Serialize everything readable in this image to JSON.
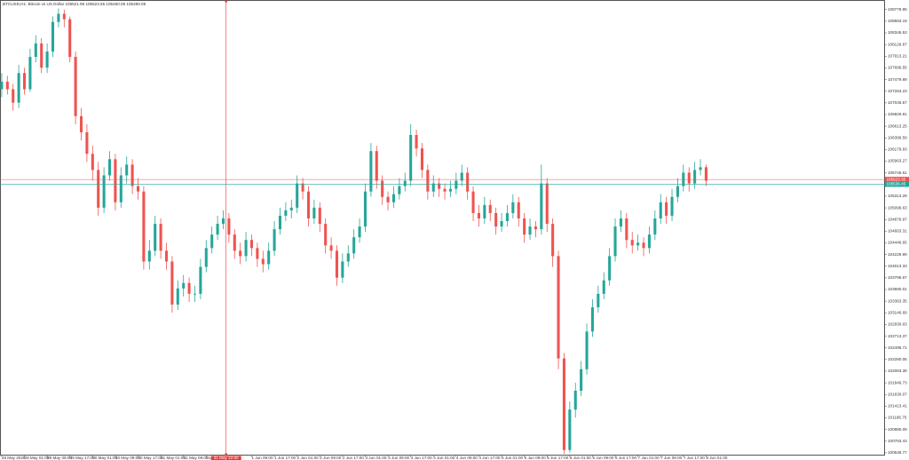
{
  "chart_data": {
    "type": "candlestick",
    "title": "BTCUSD,H1:  Bitcoin vs US Dollar  105521.95 105523.55 105460.05 105480.05",
    "up_color": "#26a69a",
    "down_color": "#ef5350",
    "x": [
      0,
      2,
      4,
      6,
      8,
      10,
      12,
      14,
      16,
      18,
      20,
      22,
      24,
      26,
      28,
      30,
      32,
      34,
      36,
      38,
      40,
      42,
      44,
      46,
      48,
      50,
      52,
      54,
      56,
      58,
      60,
      62,
      64,
      66,
      68,
      70,
      72,
      74,
      76,
      78,
      80,
      82,
      84,
      86,
      88,
      90,
      92,
      94,
      96,
      98,
      100,
      102,
      104,
      106,
      108,
      110,
      112,
      114,
      116,
      118,
      120,
      122,
      124,
      126,
      128,
      130,
      132,
      134,
      136,
      138,
      140,
      142,
      144,
      146,
      148,
      150,
      152,
      154,
      156,
      158,
      160,
      162,
      164,
      166,
      168,
      170,
      172,
      174,
      176,
      178,
      180,
      182,
      184,
      186,
      188,
      190,
      192,
      194,
      196,
      198,
      200,
      202,
      204,
      206,
      208,
      210,
      212,
      214,
      216,
      218,
      220,
      222,
      224,
      226,
      228,
      230,
      232,
      234,
      236,
      238,
      240,
      242,
      244,
      246,
      248
    ],
    "open": [
      107300,
      107440,
      107300,
      107050,
      107600,
      107300,
      107900,
      108150,
      107700,
      108000,
      108550,
      108700,
      108600,
      107900,
      106800,
      106500,
      106100,
      105800,
      105100,
      105700,
      106000,
      105200,
      105700,
      105900,
      105500,
      105400,
      104100,
      104300,
      104800,
      104300,
      104100,
      103300,
      103600,
      103700,
      103500,
      103500,
      104000,
      104350,
      104600,
      104800,
      104900,
      104600,
      104300,
      104200,
      104500,
      104350,
      104150,
      104050,
      104300,
      104700,
      104950,
      105050,
      105100,
      105550,
      105400,
      104900,
      105100,
      104800,
      104400,
      104300,
      103800,
      104100,
      104250,
      104550,
      104750,
      105400,
      106150,
      105600,
      105300,
      105200,
      105350,
      105500,
      105600,
      106450,
      106200,
      105800,
      105400,
      105550,
      105450,
      105400,
      105450,
      105600,
      105750,
      105400,
      105000,
      104900,
      105150,
      105000,
      104750,
      104850,
      105000,
      105200,
      104900,
      104600,
      104750,
      104700,
      105550,
      104800,
      104200,
      102300,
      100600,
      101350,
      101700,
      102100,
      102800,
      103250,
      103500,
      103750,
      104200,
      104750,
      104900,
      104500,
      104400,
      104450,
      104350,
      104600,
      104900,
      105200,
      104950,
      105300,
      105500,
      105750,
      105550,
      105800,
      105850
    ],
    "high": [
      107600,
      107550,
      107400,
      107750,
      107700,
      108050,
      108300,
      108250,
      108150,
      108650,
      108800,
      108780,
      108650,
      108000,
      106950,
      106650,
      106250,
      105950,
      105850,
      106150,
      106100,
      105850,
      106050,
      106000,
      105650,
      105500,
      104500,
      104950,
      104900,
      104450,
      104200,
      103750,
      103850,
      103800,
      103650,
      104150,
      104500,
      104750,
      104950,
      105050,
      105000,
      104700,
      104450,
      104650,
      104600,
      104450,
      104300,
      104450,
      104850,
      105100,
      105200,
      105250,
      105700,
      105650,
      105500,
      105250,
      105200,
      104900,
      104550,
      104400,
      104250,
      104400,
      104700,
      104900,
      105550,
      106300,
      106250,
      105700,
      105400,
      105500,
      105650,
      105750,
      106650,
      106550,
      106300,
      105900,
      105700,
      105650,
      105550,
      105600,
      105750,
      105900,
      105850,
      105500,
      105150,
      105300,
      105250,
      105100,
      105000,
      105150,
      105350,
      105300,
      105000,
      104900,
      104850,
      105900,
      105650,
      104900,
      104300,
      102400,
      101500,
      101850,
      102250,
      102950,
      103400,
      103650,
      103900,
      104350,
      104900,
      105050,
      105000,
      104650,
      104600,
      104550,
      104750,
      105050,
      105350,
      105300,
      105450,
      105650,
      105900,
      105850,
      105950,
      106000,
      105900
    ],
    "low": [
      107150,
      107200,
      106900,
      106950,
      107200,
      107250,
      107800,
      107600,
      107600,
      107900,
      108450,
      108450,
      107800,
      106650,
      106350,
      105950,
      105600,
      104950,
      105000,
      105600,
      105050,
      105100,
      105550,
      105350,
      105250,
      103950,
      103950,
      104200,
      104150,
      103950,
      103150,
      103200,
      103450,
      103350,
      103350,
      103400,
      103900,
      104250,
      104500,
      104700,
      104450,
      104150,
      104050,
      104100,
      104200,
      104000,
      103900,
      103950,
      104200,
      104600,
      104850,
      104900,
      105000,
      105250,
      104750,
      104800,
      104650,
      104250,
      104150,
      103650,
      103700,
      104000,
      104150,
      104450,
      104650,
      105300,
      105450,
      105150,
      105050,
      105100,
      105250,
      105400,
      105500,
      106050,
      105650,
      105250,
      105300,
      105300,
      105250,
      105300,
      105350,
      105500,
      105250,
      104850,
      104750,
      104800,
      104850,
      104600,
      104650,
      104750,
      104900,
      104750,
      104450,
      104500,
      104550,
      104600,
      104650,
      104000,
      102100,
      100527,
      100550,
      101200,
      101600,
      102000,
      102700,
      103150,
      103400,
      103650,
      104100,
      104650,
      104350,
      104250,
      104300,
      104200,
      104250,
      104500,
      104800,
      104800,
      104850,
      105200,
      105400,
      105400,
      105450,
      105700,
      105500
    ],
    "close": [
      107440,
      107300,
      107050,
      107600,
      107300,
      107900,
      108150,
      107700,
      108000,
      108550,
      108700,
      108600,
      107900,
      106800,
      106500,
      106100,
      105800,
      105100,
      105700,
      106000,
      105200,
      105700,
      105900,
      105500,
      105400,
      104100,
      104300,
      104800,
      104300,
      104100,
      103300,
      103600,
      103700,
      103500,
      103500,
      104000,
      104350,
      104600,
      104800,
      104900,
      104600,
      104300,
      104200,
      104500,
      104350,
      104150,
      104050,
      104300,
      104700,
      104950,
      105050,
      105100,
      105550,
      105400,
      104900,
      105100,
      104800,
      104400,
      104300,
      103800,
      104100,
      104250,
      104550,
      104750,
      105400,
      106150,
      105600,
      105300,
      105200,
      105350,
      105500,
      105600,
      106450,
      106200,
      105800,
      105400,
      105550,
      105450,
      105400,
      105450,
      105600,
      105750,
      105400,
      105000,
      104900,
      105150,
      105000,
      104750,
      104850,
      105000,
      105200,
      104900,
      104600,
      104750,
      104700,
      105550,
      104800,
      104200,
      102300,
      100600,
      101350,
      101700,
      102100,
      102800,
      103250,
      103500,
      103750,
      104200,
      104750,
      104900,
      104500,
      104400,
      104450,
      104350,
      104600,
      104900,
      105200,
      104950,
      105300,
      105500,
      105750,
      105550,
      105800,
      105850,
      105600
    ],
    "xlim": [
      -0.6,
      311
    ],
    "ylim": [
      100496,
      108957
    ],
    "xticks": [
      {
        "value": 0,
        "label": "28 May 2025"
      },
      {
        "value": 8,
        "label": "29 May 01:00"
      },
      {
        "value": 16,
        "label": "29 May 09:00"
      },
      {
        "value": 24,
        "label": "29 May 17:00"
      },
      {
        "value": 32,
        "label": "30 May 01:00"
      },
      {
        "value": 40,
        "label": "30 May 09:00"
      },
      {
        "value": 48,
        "label": "30 May 17:00"
      },
      {
        "value": 56,
        "label": "31 May 01:00"
      },
      {
        "value": 64,
        "label": "31 May 09:00"
      },
      {
        "value": 72,
        "label": "31 May 17:00"
      },
      {
        "value": 88,
        "label": "1 Jun 09:00"
      },
      {
        "value": 96,
        "label": "1 Jun 17:00"
      },
      {
        "value": 104,
        "label": "2 Jun 01:00"
      },
      {
        "value": 112,
        "label": "2 Jun 09:00"
      },
      {
        "value": 120,
        "label": "2 Jun 17:00"
      },
      {
        "value": 128,
        "label": "3 Jun 01:00"
      },
      {
        "value": 136,
        "label": "3 Jun 09:00"
      },
      {
        "value": 144,
        "label": "3 Jun 17:00"
      },
      {
        "value": 152,
        "label": "4 Jun 01:00"
      },
      {
        "value": 160,
        "label": "4 Jun 09:00"
      },
      {
        "value": 168,
        "label": "4 Jun 17:00"
      },
      {
        "value": 176,
        "label": "5 Jun 01:00"
      },
      {
        "value": 184,
        "label": "5 Jun 09:00"
      },
      {
        "value": 192,
        "label": "5 Jun 17:00"
      },
      {
        "value": 200,
        "label": "6 Jun 01:00"
      },
      {
        "value": 208,
        "label": "6 Jun 09:00"
      },
      {
        "value": 216,
        "label": "6 Jun 17:00"
      },
      {
        "value": 224,
        "label": "7 Jun 01:00"
      },
      {
        "value": 232,
        "label": "7 Jun 09:00"
      },
      {
        "value": 240,
        "label": "7 Jun 17:00"
      },
      {
        "value": 248,
        "label": "8 Jun 01:00"
      }
    ],
    "yticks": [
      100546.77,
      100763.43,
      100980.09,
      101196.75,
      101413.41,
      101630.07,
      101846.73,
      102063.39,
      102280.05,
      102496.71,
      102713.37,
      102930.03,
      103146.69,
      103363.35,
      103580.01,
      103796.67,
      104013.33,
      104229.99,
      104446.65,
      104663.31,
      104879.97,
      105096.63,
      105313.29,
      105529.95,
      105746.61,
      105963.27,
      106179.93,
      106396.59,
      106613.25,
      106829.91,
      107046.57,
      107263.23,
      107479.89,
      107696.55,
      107913.21,
      108129.87,
      108346.53,
      108563.19,
      108779.85
    ],
    "price_lines": [
      {
        "value": 105623.35,
        "color": "#ef5350"
      },
      {
        "value": 105536.45,
        "color": "#26a69a"
      }
    ],
    "crosshair": {
      "x": 79,
      "label": "31 May 22:00",
      "color": "#e53935"
    }
  }
}
